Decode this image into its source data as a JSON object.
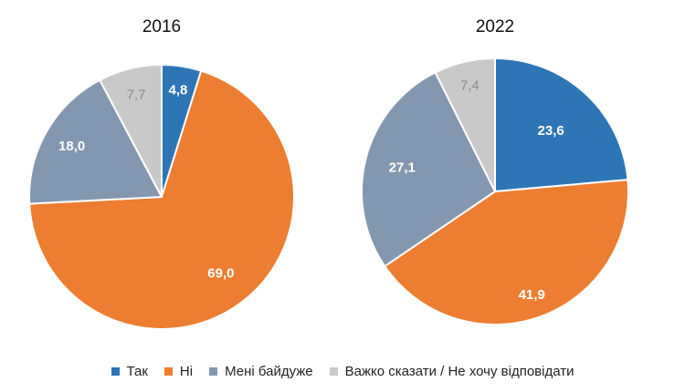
{
  "chart_data": [
    {
      "type": "pie",
      "title": "2016",
      "categories": [
        "Так",
        "Ні",
        "Мені байдуже",
        "Важко сказати / Не хочу відповідати"
      ],
      "labels": [
        "4,8",
        "69,0",
        "18,0",
        "7,7"
      ],
      "values": [
        4.8,
        69.0,
        18.0,
        7.7
      ]
    },
    {
      "type": "pie",
      "title": "2022",
      "categories": [
        "Так",
        "Ні",
        "Мені байдуже",
        "Важко сказати / Не хочу відповідати"
      ],
      "labels": [
        "23,6",
        "41,9",
        "27,1",
        "7,4"
      ],
      "values": [
        23.6,
        41.9,
        27.1,
        7.4
      ]
    }
  ],
  "legend": {
    "items": [
      {
        "label": "Так",
        "color": "#2e75b6"
      },
      {
        "label": "Ні",
        "color": "#ed7d31"
      },
      {
        "label": "Мені байдуже",
        "color": "#8497b0"
      },
      {
        "label": "Важко сказати / Не хочу відповідати",
        "color": "#c9c9c9"
      }
    ],
    "placement": "bottom"
  },
  "colors": {
    "slice_colors": [
      "#2e75b6",
      "#ed7d31",
      "#8497b0",
      "#c9c9c9"
    ],
    "label_colors": [
      "#ffffff",
      "#ffffff",
      "#ffffff",
      "#8c8c8c"
    ]
  }
}
